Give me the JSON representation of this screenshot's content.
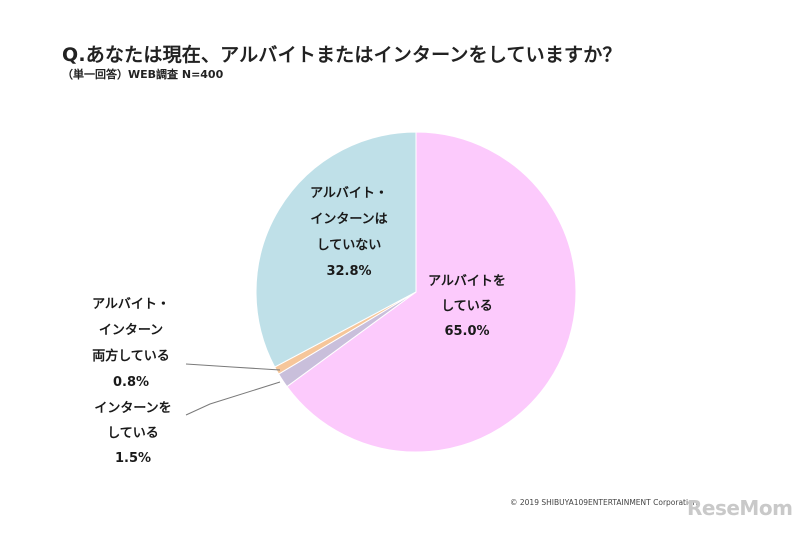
{
  "header": {
    "title": "Q.あなたは現在、アルバイトまたはインターンをしていますか？",
    "subtitle": "（単一回答）WEB調査 N=400"
  },
  "footer": {
    "copyright": "© 2019 SHIBUYA109ENTERTAINMENT Corporation",
    "logo": "ReseMom"
  },
  "chart_data": {
    "type": "pie",
    "title": "Q.あなたは現在、アルバイトまたはインターンをしていますか？",
    "unit": "%",
    "start_angle_deg": 0,
    "direction": "clockwise",
    "slices": [
      {
        "label_lines": [
          "アルバイトを",
          "している"
        ],
        "value_text": "65.0%",
        "value": 65.0,
        "color": "#fccafc"
      },
      {
        "label_lines": [
          "インターンを",
          "している"
        ],
        "value_text": "1.5%",
        "value": 1.5,
        "color": "#c9bfdb"
      },
      {
        "label_lines": [
          "アルバイト・",
          "インターン",
          "両方している"
        ],
        "value_text": "0.8%",
        "value": 0.8,
        "color": "#f6c69a"
      },
      {
        "label_lines": [
          "アルバイト・",
          "インターンは",
          "していない"
        ],
        "value_text": "32.8%",
        "value": 32.8,
        "color": "#bfe0e8"
      }
    ]
  }
}
